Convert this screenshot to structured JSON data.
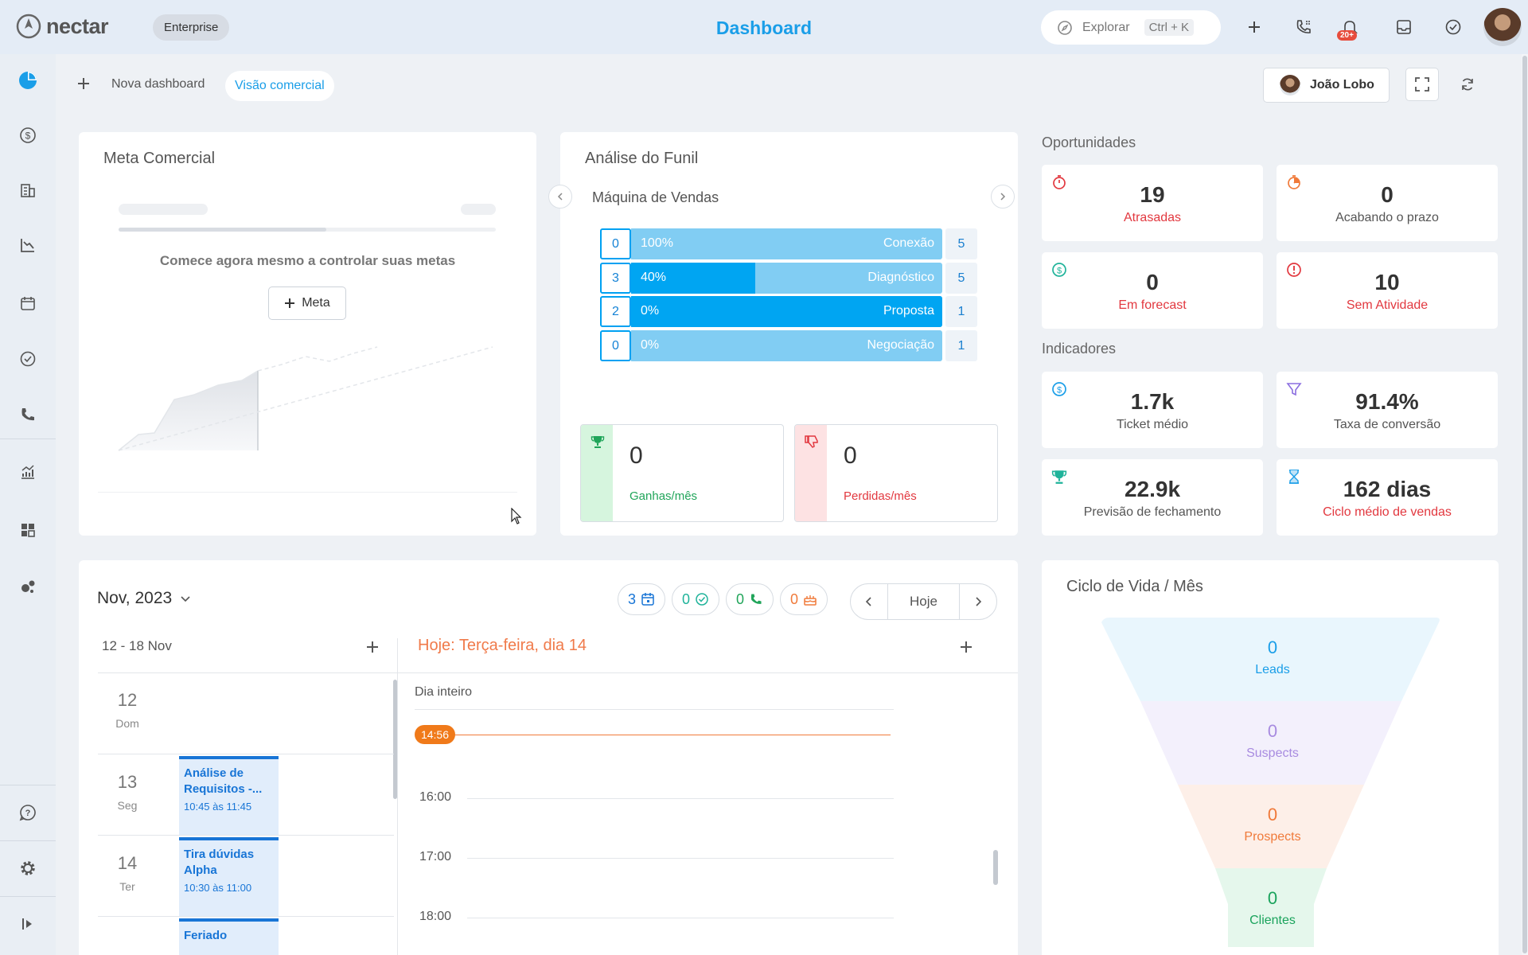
{
  "topbar": {
    "logo": "nectar",
    "plan": "Enterprise",
    "title": "Dashboard",
    "search_label": "Explorar",
    "search_shortcut": "Ctrl + K",
    "notification_badge": "20+"
  },
  "subbar": {
    "new_dashboard": "Nova dashboard",
    "active_tab": "Visão comercial",
    "user": "João Lobo"
  },
  "meta": {
    "title": "Meta Comercial",
    "cta": "Comece agora mesmo a controlar suas metas",
    "button": "Meta"
  },
  "funnel": {
    "title": "Análise do Funil",
    "pipeline": "Máquina de Vendas",
    "stages": [
      {
        "count": "0",
        "pct": "100%",
        "name": "Conexão",
        "total": "5",
        "fill": 0
      },
      {
        "count": "3",
        "pct": "40%",
        "name": "Diagnóstico",
        "total": "5",
        "fill": 0.4
      },
      {
        "count": "2",
        "pct": "0%",
        "name": "Proposta",
        "total": "1",
        "fill": 1
      },
      {
        "count": "0",
        "pct": "0%",
        "name": "Negociação",
        "total": "1",
        "fill": 0
      }
    ],
    "won_value": "0",
    "won_label": "Ganhas/mês",
    "lost_value": "0",
    "lost_label": "Perdidas/mês"
  },
  "oportunidades": {
    "title": "Oportunidades",
    "tiles": [
      {
        "value": "19",
        "label": "Atrasadas"
      },
      {
        "value": "0",
        "label": "Acabando o prazo"
      },
      {
        "value": "0",
        "label": "Em forecast"
      },
      {
        "value": "10",
        "label": "Sem Atividade"
      }
    ]
  },
  "indicadores": {
    "title": "Indicadores",
    "tiles": [
      {
        "value": "1.7k",
        "label": "Ticket médio"
      },
      {
        "value": "91.4%",
        "label": "Taxa de conversão"
      },
      {
        "value": "22.9k",
        "label": "Previsão de fechamento"
      },
      {
        "value": "162 dias",
        "label": "Ciclo médio de vendas"
      }
    ]
  },
  "calendar": {
    "month": "Nov, 2023",
    "counters": {
      "events": "3",
      "tasks": "0",
      "calls": "0",
      "birthdays": "0"
    },
    "today_button": "Hoje",
    "week_range": "12 - 18 Nov",
    "today_label": "Hoje: Terça-feira, dia 14",
    "all_day": "Dia inteiro",
    "now_time": "14:56",
    "hours": [
      "16:00",
      "17:00",
      "18:00"
    ],
    "days": [
      {
        "num": "12",
        "name": "Dom"
      },
      {
        "num": "13",
        "name": "Seg"
      },
      {
        "num": "14",
        "name": "Ter"
      }
    ],
    "events": [
      {
        "title": "Análise de Requisitos -...",
        "time": "10:45 às 11:45"
      },
      {
        "title": "Tira dúvidas Alpha",
        "time": "10:30 às 11:00"
      },
      {
        "title": "Feriado",
        "time": ""
      }
    ]
  },
  "lifecycle": {
    "title": "Ciclo de Vida / Mês",
    "stages": [
      {
        "value": "0",
        "label": "Leads",
        "color": "#1a9ee8"
      },
      {
        "value": "0",
        "label": "Suspects",
        "color": "#a88be0"
      },
      {
        "value": "0",
        "label": "Prospects",
        "color": "#f07a3a"
      },
      {
        "value": "0",
        "label": "Clientes",
        "color": "#1aa35c"
      }
    ]
  },
  "colors": {
    "accent": "#1a9ee8",
    "red": "#e2383f",
    "funnel_bar": "#00a5f2"
  }
}
